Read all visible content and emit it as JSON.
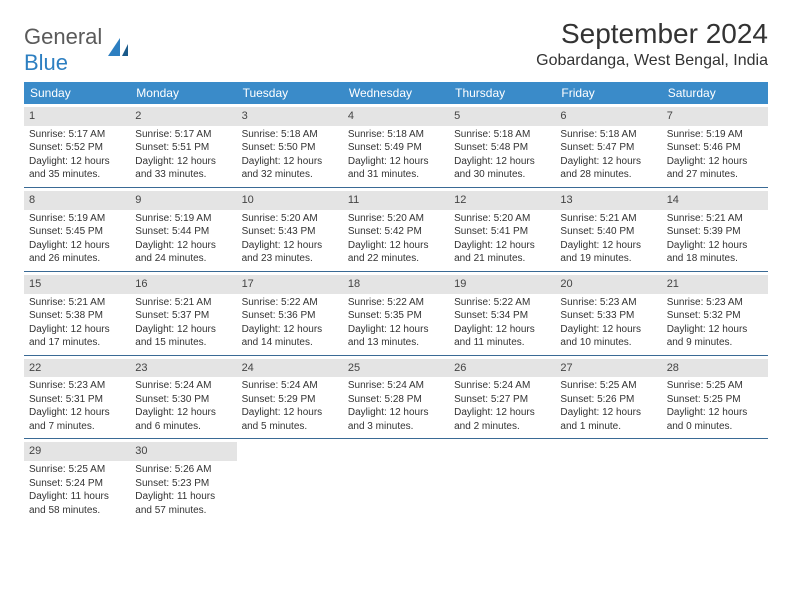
{
  "logo": {
    "text_general": "General",
    "text_blue": "Blue"
  },
  "title": "September 2024",
  "location": "Gobardanga, West Bengal, India",
  "colors": {
    "header_bg": "#3a8bc9",
    "header_text": "#ffffff",
    "daynum_bg": "#e4e4e4",
    "border": "#3a6a95",
    "text": "#333333",
    "logo_gray": "#5a5a5a",
    "logo_blue": "#2d7fc1"
  },
  "weekdays": [
    "Sunday",
    "Monday",
    "Tuesday",
    "Wednesday",
    "Thursday",
    "Friday",
    "Saturday"
  ],
  "weeks": [
    [
      {
        "n": "1",
        "sr": "Sunrise: 5:17 AM",
        "ss": "Sunset: 5:52 PM",
        "dl": "Daylight: 12 hours and 35 minutes."
      },
      {
        "n": "2",
        "sr": "Sunrise: 5:17 AM",
        "ss": "Sunset: 5:51 PM",
        "dl": "Daylight: 12 hours and 33 minutes."
      },
      {
        "n": "3",
        "sr": "Sunrise: 5:18 AM",
        "ss": "Sunset: 5:50 PM",
        "dl": "Daylight: 12 hours and 32 minutes."
      },
      {
        "n": "4",
        "sr": "Sunrise: 5:18 AM",
        "ss": "Sunset: 5:49 PM",
        "dl": "Daylight: 12 hours and 31 minutes."
      },
      {
        "n": "5",
        "sr": "Sunrise: 5:18 AM",
        "ss": "Sunset: 5:48 PM",
        "dl": "Daylight: 12 hours and 30 minutes."
      },
      {
        "n": "6",
        "sr": "Sunrise: 5:18 AM",
        "ss": "Sunset: 5:47 PM",
        "dl": "Daylight: 12 hours and 28 minutes."
      },
      {
        "n": "7",
        "sr": "Sunrise: 5:19 AM",
        "ss": "Sunset: 5:46 PM",
        "dl": "Daylight: 12 hours and 27 minutes."
      }
    ],
    [
      {
        "n": "8",
        "sr": "Sunrise: 5:19 AM",
        "ss": "Sunset: 5:45 PM",
        "dl": "Daylight: 12 hours and 26 minutes."
      },
      {
        "n": "9",
        "sr": "Sunrise: 5:19 AM",
        "ss": "Sunset: 5:44 PM",
        "dl": "Daylight: 12 hours and 24 minutes."
      },
      {
        "n": "10",
        "sr": "Sunrise: 5:20 AM",
        "ss": "Sunset: 5:43 PM",
        "dl": "Daylight: 12 hours and 23 minutes."
      },
      {
        "n": "11",
        "sr": "Sunrise: 5:20 AM",
        "ss": "Sunset: 5:42 PM",
        "dl": "Daylight: 12 hours and 22 minutes."
      },
      {
        "n": "12",
        "sr": "Sunrise: 5:20 AM",
        "ss": "Sunset: 5:41 PM",
        "dl": "Daylight: 12 hours and 21 minutes."
      },
      {
        "n": "13",
        "sr": "Sunrise: 5:21 AM",
        "ss": "Sunset: 5:40 PM",
        "dl": "Daylight: 12 hours and 19 minutes."
      },
      {
        "n": "14",
        "sr": "Sunrise: 5:21 AM",
        "ss": "Sunset: 5:39 PM",
        "dl": "Daylight: 12 hours and 18 minutes."
      }
    ],
    [
      {
        "n": "15",
        "sr": "Sunrise: 5:21 AM",
        "ss": "Sunset: 5:38 PM",
        "dl": "Daylight: 12 hours and 17 minutes."
      },
      {
        "n": "16",
        "sr": "Sunrise: 5:21 AM",
        "ss": "Sunset: 5:37 PM",
        "dl": "Daylight: 12 hours and 15 minutes."
      },
      {
        "n": "17",
        "sr": "Sunrise: 5:22 AM",
        "ss": "Sunset: 5:36 PM",
        "dl": "Daylight: 12 hours and 14 minutes."
      },
      {
        "n": "18",
        "sr": "Sunrise: 5:22 AM",
        "ss": "Sunset: 5:35 PM",
        "dl": "Daylight: 12 hours and 13 minutes."
      },
      {
        "n": "19",
        "sr": "Sunrise: 5:22 AM",
        "ss": "Sunset: 5:34 PM",
        "dl": "Daylight: 12 hours and 11 minutes."
      },
      {
        "n": "20",
        "sr": "Sunrise: 5:23 AM",
        "ss": "Sunset: 5:33 PM",
        "dl": "Daylight: 12 hours and 10 minutes."
      },
      {
        "n": "21",
        "sr": "Sunrise: 5:23 AM",
        "ss": "Sunset: 5:32 PM",
        "dl": "Daylight: 12 hours and 9 minutes."
      }
    ],
    [
      {
        "n": "22",
        "sr": "Sunrise: 5:23 AM",
        "ss": "Sunset: 5:31 PM",
        "dl": "Daylight: 12 hours and 7 minutes."
      },
      {
        "n": "23",
        "sr": "Sunrise: 5:24 AM",
        "ss": "Sunset: 5:30 PM",
        "dl": "Daylight: 12 hours and 6 minutes."
      },
      {
        "n": "24",
        "sr": "Sunrise: 5:24 AM",
        "ss": "Sunset: 5:29 PM",
        "dl": "Daylight: 12 hours and 5 minutes."
      },
      {
        "n": "25",
        "sr": "Sunrise: 5:24 AM",
        "ss": "Sunset: 5:28 PM",
        "dl": "Daylight: 12 hours and 3 minutes."
      },
      {
        "n": "26",
        "sr": "Sunrise: 5:24 AM",
        "ss": "Sunset: 5:27 PM",
        "dl": "Daylight: 12 hours and 2 minutes."
      },
      {
        "n": "27",
        "sr": "Sunrise: 5:25 AM",
        "ss": "Sunset: 5:26 PM",
        "dl": "Daylight: 12 hours and 1 minute."
      },
      {
        "n": "28",
        "sr": "Sunrise: 5:25 AM",
        "ss": "Sunset: 5:25 PM",
        "dl": "Daylight: 12 hours and 0 minutes."
      }
    ],
    [
      {
        "n": "29",
        "sr": "Sunrise: 5:25 AM",
        "ss": "Sunset: 5:24 PM",
        "dl": "Daylight: 11 hours and 58 minutes."
      },
      {
        "n": "30",
        "sr": "Sunrise: 5:26 AM",
        "ss": "Sunset: 5:23 PM",
        "dl": "Daylight: 11 hours and 57 minutes."
      },
      null,
      null,
      null,
      null,
      null
    ]
  ]
}
